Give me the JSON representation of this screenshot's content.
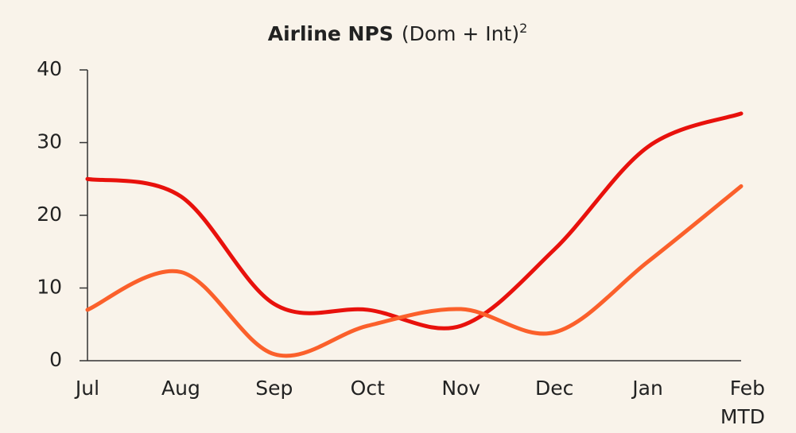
{
  "chart_data": {
    "type": "line",
    "title": "Airline NPS",
    "title_note": "(Dom + Int)",
    "title_sup": "2",
    "categories": [
      "Jul",
      "Aug",
      "Sep",
      "Oct",
      "Nov",
      "Dec",
      "Jan",
      "Feb\nMTD"
    ],
    "series": [
      {
        "color": "#e8110c",
        "values": [
          25,
          22.6,
          7.8,
          7,
          4.8,
          15.3,
          29.4,
          34
        ]
      },
      {
        "color": "#fb602b",
        "values": [
          7,
          12.2,
          0.9,
          4.8,
          7.1,
          3.9,
          13.6,
          24
        ]
      }
    ],
    "ylim": [
      0,
      40
    ],
    "yticks": [
      0,
      10,
      20,
      30,
      40
    ],
    "grid": false
  }
}
